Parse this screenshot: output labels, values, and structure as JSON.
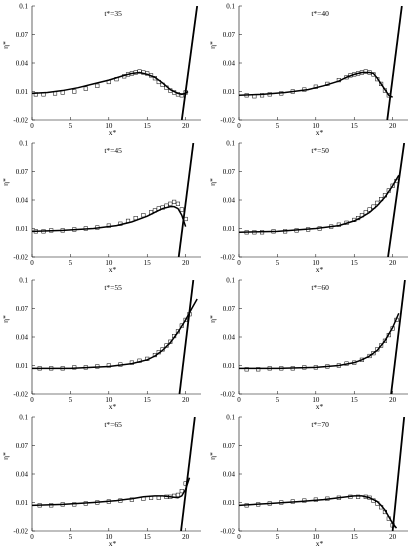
{
  "figure": {
    "background": "#ffffff",
    "ink": "#000000"
  },
  "chart_data": [
    {
      "type": "line",
      "title": "t*=35",
      "xlabel": "x*",
      "ylabel": "η*",
      "xlim": [
        0,
        22
      ],
      "ylim": [
        -0.02,
        0.1
      ],
      "xticks": [
        0,
        5,
        10,
        15,
        20
      ],
      "yticks": [
        -0.02,
        0.01,
        0.04,
        0.07,
        0.1
      ],
      "ytick_labels": [
        "-0.02",
        "0.01",
        "0.04",
        "0.07",
        "0.1"
      ],
      "series": [
        {
          "kind": "line",
          "x": [
            0,
            2,
            4,
            6,
            8,
            10,
            12,
            13,
            14,
            15,
            16,
            17,
            18,
            19,
            19.5,
            20,
            20.3
          ],
          "y": [
            0.008,
            0.009,
            0.011,
            0.014,
            0.018,
            0.022,
            0.027,
            0.029,
            0.03,
            0.028,
            0.025,
            0.019,
            0.012,
            0.008,
            0.007,
            0.008,
            0.01
          ]
        },
        {
          "kind": "scatter",
          "x": [
            0.5,
            1.5,
            3,
            4,
            5.5,
            7,
            8.5,
            10,
            11,
            12,
            12.5,
            13,
            13.5,
            14,
            14.5,
            15,
            15.5,
            16,
            16.5,
            17,
            17.5,
            18,
            18.5,
            19,
            19.5,
            20
          ],
          "y": [
            0.007,
            0.007,
            0.008,
            0.009,
            0.01,
            0.013,
            0.016,
            0.02,
            0.023,
            0.026,
            0.028,
            0.029,
            0.03,
            0.031,
            0.03,
            0.029,
            0.027,
            0.024,
            0.02,
            0.017,
            0.014,
            0.011,
            0.009,
            0.007,
            0.006,
            0.009
          ]
        },
        {
          "kind": "line",
          "x": [
            19.5,
            21.5
          ],
          "y": [
            -0.02,
            0.1
          ]
        }
      ]
    },
    {
      "type": "line",
      "title": "t*=40",
      "xlabel": "x*",
      "ylabel": "η*",
      "xlim": [
        0,
        22
      ],
      "ylim": [
        -0.02,
        0.1
      ],
      "xticks": [
        0,
        5,
        10,
        15,
        20
      ],
      "yticks": [
        -0.02,
        0.01,
        0.04,
        0.07,
        0.1
      ],
      "ytick_labels": [
        "-0.02",
        "0.01",
        "0.04",
        "0.07",
        "0.1"
      ],
      "series": [
        {
          "kind": "line",
          "x": [
            0,
            3,
            6,
            9,
            11,
            13,
            14,
            15,
            16,
            17,
            17.5,
            18,
            19,
            19.5,
            20
          ],
          "y": [
            0.006,
            0.007,
            0.009,
            0.012,
            0.016,
            0.021,
            0.025,
            0.028,
            0.03,
            0.03,
            0.029,
            0.024,
            0.012,
            0.006,
            0.004
          ]
        },
        {
          "kind": "scatter",
          "x": [
            1,
            2,
            3,
            4,
            5.5,
            7,
            8.5,
            10,
            11.5,
            13,
            14,
            14.5,
            15,
            15.5,
            16,
            16.5,
            17,
            17.5,
            18,
            18.5,
            19,
            19.5
          ],
          "y": [
            0.006,
            0.005,
            0.006,
            0.007,
            0.008,
            0.01,
            0.012,
            0.015,
            0.018,
            0.022,
            0.025,
            0.027,
            0.028,
            0.029,
            0.03,
            0.031,
            0.03,
            0.028,
            0.023,
            0.018,
            0.011,
            0.006
          ]
        },
        {
          "kind": "line",
          "x": [
            19.3,
            21.2
          ],
          "y": [
            -0.02,
            0.1
          ]
        }
      ]
    },
    {
      "type": "line",
      "title": "t*=45",
      "xlabel": "x*",
      "ylabel": "η*",
      "xlim": [
        0,
        22
      ],
      "ylim": [
        -0.02,
        0.1
      ],
      "xticks": [
        0,
        5,
        10,
        15,
        20
      ],
      "yticks": [
        -0.02,
        0.01,
        0.04,
        0.07,
        0.1
      ],
      "ytick_labels": [
        "-0.02",
        "0.01",
        "0.04",
        "0.07",
        "0.1"
      ],
      "series": [
        {
          "kind": "line",
          "x": [
            0,
            4,
            8,
            11,
            13,
            15,
            16,
            17,
            18,
            18.5,
            19,
            19.5,
            20
          ],
          "y": [
            0.007,
            0.008,
            0.01,
            0.013,
            0.017,
            0.023,
            0.027,
            0.031,
            0.033,
            0.033,
            0.031,
            0.024,
            0.012
          ]
        },
        {
          "kind": "scatter",
          "x": [
            0.5,
            1.5,
            2.5,
            4,
            5.5,
            7,
            8.5,
            10,
            11.5,
            12.5,
            13.5,
            14.5,
            15.5,
            16,
            16.5,
            17,
            17.5,
            18,
            18.5,
            19,
            19.5,
            20
          ],
          "y": [
            0.007,
            0.007,
            0.008,
            0.008,
            0.009,
            0.01,
            0.011,
            0.013,
            0.015,
            0.018,
            0.021,
            0.024,
            0.027,
            0.029,
            0.031,
            0.032,
            0.034,
            0.036,
            0.038,
            0.036,
            0.03,
            0.02
          ]
        },
        {
          "kind": "line",
          "x": [
            19.1,
            21.0
          ],
          "y": [
            -0.02,
            0.1
          ]
        }
      ]
    },
    {
      "type": "line",
      "title": "t*=50",
      "xlabel": "x*",
      "ylabel": "η*",
      "xlim": [
        0,
        22
      ],
      "ylim": [
        -0.02,
        0.1
      ],
      "xticks": [
        0,
        5,
        10,
        15,
        20
      ],
      "yticks": [
        -0.02,
        0.01,
        0.04,
        0.07,
        0.1
      ],
      "ytick_labels": [
        "-0.02",
        "0.01",
        "0.04",
        "0.07",
        "0.1"
      ],
      "series": [
        {
          "kind": "line",
          "x": [
            0,
            5,
            10,
            13,
            15,
            16,
            17,
            18,
            19,
            20,
            20.8
          ],
          "y": [
            0.006,
            0.007,
            0.01,
            0.013,
            0.018,
            0.022,
            0.027,
            0.034,
            0.043,
            0.055,
            0.066
          ]
        },
        {
          "kind": "scatter",
          "x": [
            1,
            2,
            3,
            4.5,
            6,
            7.5,
            9,
            10.5,
            12,
            13,
            14,
            15,
            15.5,
            16,
            16.5,
            17,
            17.5,
            18,
            18.5,
            19,
            19.5,
            20,
            20.5
          ],
          "y": [
            0.006,
            0.006,
            0.006,
            0.007,
            0.007,
            0.008,
            0.009,
            0.01,
            0.012,
            0.014,
            0.016,
            0.019,
            0.021,
            0.024,
            0.027,
            0.03,
            0.033,
            0.037,
            0.041,
            0.045,
            0.05,
            0.055,
            0.06
          ]
        },
        {
          "kind": "line",
          "x": [
            19.4,
            21.5
          ],
          "y": [
            -0.02,
            0.1
          ]
        }
      ]
    },
    {
      "type": "line",
      "title": "t*=55",
      "xlabel": "x*",
      "ylabel": "η*",
      "xlim": [
        0,
        22
      ],
      "ylim": [
        -0.02,
        0.1
      ],
      "xticks": [
        0,
        5,
        10,
        15,
        20
      ],
      "yticks": [
        -0.02,
        0.01,
        0.04,
        0.07,
        0.1
      ],
      "ytick_labels": [
        "-0.02",
        "0.01",
        "0.04",
        "0.07",
        "0.1"
      ],
      "series": [
        {
          "kind": "line",
          "x": [
            0,
            5,
            10,
            13,
            15,
            16,
            17,
            18,
            19,
            20,
            20.8,
            21.5
          ],
          "y": [
            0.007,
            0.007,
            0.009,
            0.012,
            0.016,
            0.02,
            0.026,
            0.034,
            0.045,
            0.058,
            0.07,
            0.08
          ]
        },
        {
          "kind": "scatter",
          "x": [
            1,
            2.5,
            4,
            5.5,
            7,
            8.5,
            10,
            11.5,
            13,
            14,
            15,
            16,
            16.5,
            17,
            17.5,
            18,
            18.5,
            19,
            19.5,
            20,
            20.5
          ],
          "y": [
            0.007,
            0.007,
            0.007,
            0.008,
            0.008,
            0.009,
            0.01,
            0.011,
            0.013,
            0.015,
            0.017,
            0.021,
            0.024,
            0.027,
            0.031,
            0.035,
            0.041,
            0.046,
            0.052,
            0.058,
            0.064
          ]
        },
        {
          "kind": "line",
          "x": [
            19.2,
            21.0
          ],
          "y": [
            -0.02,
            0.1
          ]
        }
      ]
    },
    {
      "type": "line",
      "title": "t*=60",
      "xlabel": "x*",
      "ylabel": "η*",
      "xlim": [
        0,
        22
      ],
      "ylim": [
        -0.02,
        0.1
      ],
      "xticks": [
        0,
        5,
        10,
        15,
        20
      ],
      "yticks": [
        -0.02,
        0.01,
        0.04,
        0.07,
        0.1
      ],
      "ytick_labels": [
        "-0.02",
        "0.01",
        "0.04",
        "0.07",
        "0.1"
      ],
      "series": [
        {
          "kind": "line",
          "x": [
            0,
            5,
            10,
            13,
            15,
            16,
            17,
            18,
            19,
            20,
            20.8
          ],
          "y": [
            0.007,
            0.007,
            0.008,
            0.01,
            0.013,
            0.016,
            0.02,
            0.026,
            0.036,
            0.05,
            0.065
          ]
        },
        {
          "kind": "scatter",
          "x": [
            1,
            2.5,
            4,
            5.5,
            7,
            8.5,
            10,
            11.5,
            13,
            14,
            15,
            16,
            17,
            17.5,
            18,
            18.5,
            19,
            19.5,
            20,
            20.5
          ],
          "y": [
            0.006,
            0.006,
            0.007,
            0.007,
            0.007,
            0.008,
            0.008,
            0.009,
            0.01,
            0.012,
            0.013,
            0.016,
            0.02,
            0.023,
            0.027,
            0.031,
            0.036,
            0.042,
            0.049,
            0.058
          ]
        },
        {
          "kind": "line",
          "x": [
            19.8,
            21.6
          ],
          "y": [
            -0.02,
            0.1
          ]
        }
      ]
    },
    {
      "type": "line",
      "title": "t*=65",
      "xlabel": "x*",
      "ylabel": "η*",
      "xlim": [
        0,
        22
      ],
      "ylim": [
        -0.02,
        0.1
      ],
      "xticks": [
        0,
        5,
        10,
        15,
        20
      ],
      "yticks": [
        -0.02,
        0.01,
        0.04,
        0.07,
        0.1
      ],
      "ytick_labels": [
        "-0.02",
        "0.01",
        "0.04",
        "0.07",
        "0.1"
      ],
      "series": [
        {
          "kind": "line",
          "x": [
            0,
            4,
            8,
            11,
            13,
            14.5,
            16,
            17,
            18,
            19,
            19.5,
            20,
            20.5
          ],
          "y": [
            0.007,
            0.008,
            0.01,
            0.012,
            0.014,
            0.016,
            0.017,
            0.017,
            0.016,
            0.015,
            0.017,
            0.024,
            0.036
          ]
        },
        {
          "kind": "scatter",
          "x": [
            1,
            2.5,
            4,
            5.5,
            7,
            8.5,
            10,
            11.5,
            13,
            14.5,
            15.5,
            16.5,
            17.5,
            18,
            18.5,
            19,
            19.5,
            20
          ],
          "y": [
            0.007,
            0.007,
            0.008,
            0.008,
            0.009,
            0.01,
            0.011,
            0.012,
            0.013,
            0.014,
            0.015,
            0.015,
            0.016,
            0.016,
            0.017,
            0.018,
            0.022,
            0.03
          ]
        },
        {
          "kind": "line",
          "x": [
            19.4,
            21.2
          ],
          "y": [
            -0.02,
            0.1
          ]
        }
      ]
    },
    {
      "type": "line",
      "title": "t*=70",
      "xlabel": "x*",
      "ylabel": "η*",
      "xlim": [
        0,
        22
      ],
      "ylim": [
        -0.02,
        0.1
      ],
      "xticks": [
        0,
        5,
        10,
        15,
        20
      ],
      "yticks": [
        -0.02,
        0.01,
        0.04,
        0.07,
        0.1
      ],
      "ytick_labels": [
        "-0.02",
        "0.01",
        "0.04",
        "0.07",
        "0.1"
      ],
      "series": [
        {
          "kind": "line",
          "x": [
            0,
            4,
            8,
            11,
            13,
            15,
            16,
            17,
            18,
            18.5,
            19,
            19.5,
            20,
            20.5
          ],
          "y": [
            0.007,
            0.009,
            0.011,
            0.013,
            0.015,
            0.017,
            0.017,
            0.015,
            0.011,
            0.007,
            0.002,
            -0.005,
            -0.012,
            -0.017
          ]
        },
        {
          "kind": "scatter",
          "x": [
            1,
            2.5,
            4,
            5.5,
            7,
            8.5,
            10,
            11.5,
            13,
            14.5,
            15.5,
            16.5,
            17,
            17.5,
            18,
            18.5,
            19,
            19.5,
            20
          ],
          "y": [
            0.007,
            0.008,
            0.009,
            0.01,
            0.011,
            0.012,
            0.013,
            0.014,
            0.015,
            0.016,
            0.016,
            0.016,
            0.015,
            0.012,
            0.009,
            0.005,
            0.0,
            -0.007,
            -0.014
          ]
        },
        {
          "kind": "line",
          "x": [
            20.0,
            21.5
          ],
          "y": [
            -0.02,
            0.1
          ]
        }
      ]
    }
  ]
}
